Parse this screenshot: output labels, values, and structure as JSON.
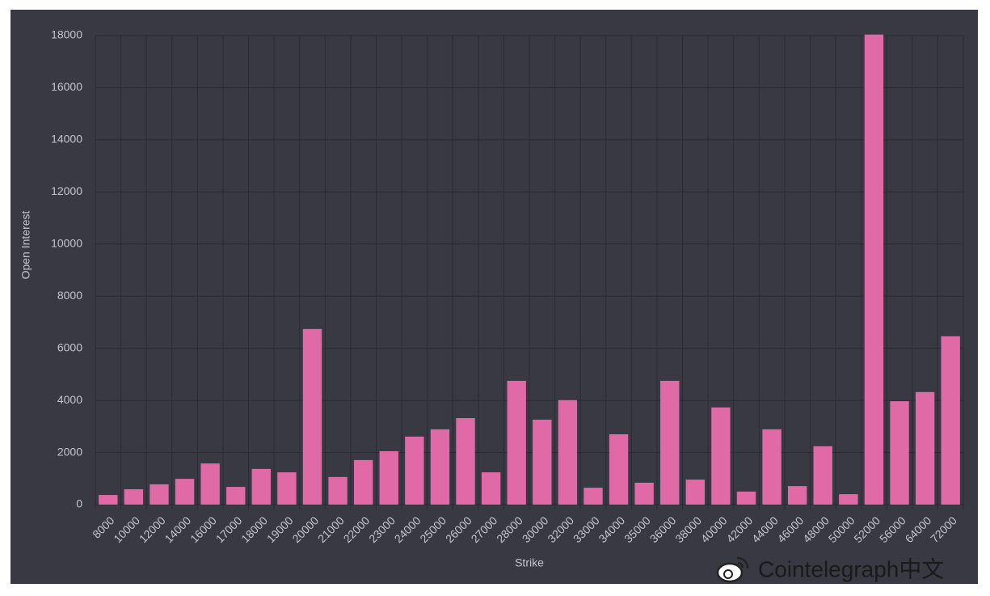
{
  "chart_data": {
    "type": "bar",
    "x_label": "Strike",
    "y_label": "Open Interest",
    "categories": [
      "8000",
      "10000",
      "12000",
      "14000",
      "16000",
      "17000",
      "18000",
      "19000",
      "20000",
      "21000",
      "22000",
      "23000",
      "24000",
      "25000",
      "26000",
      "27000",
      "28000",
      "30000",
      "32000",
      "33000",
      "34000",
      "35000",
      "36000",
      "38000",
      "40000",
      "42000",
      "44000",
      "46000",
      "48000",
      "50000",
      "52000",
      "56000",
      "64000",
      "72000"
    ],
    "values": [
      370,
      590,
      780,
      990,
      1580,
      680,
      1370,
      1240,
      6740,
      1060,
      1710,
      2050,
      2610,
      2890,
      3320,
      1240,
      4750,
      3260,
      4010,
      650,
      2700,
      840,
      4750,
      960,
      3730,
      500,
      2890,
      710,
      2240,
      400,
      18040,
      3970,
      4320,
      6460
    ],
    "color": "#e06aa6",
    "ylim": [
      0,
      18000
    ],
    "yticks": [
      0,
      2000,
      4000,
      6000,
      8000,
      10000,
      12000,
      14000,
      16000,
      18000
    ],
    "grid": true
  },
  "watermark": "Cointelegraph中文"
}
